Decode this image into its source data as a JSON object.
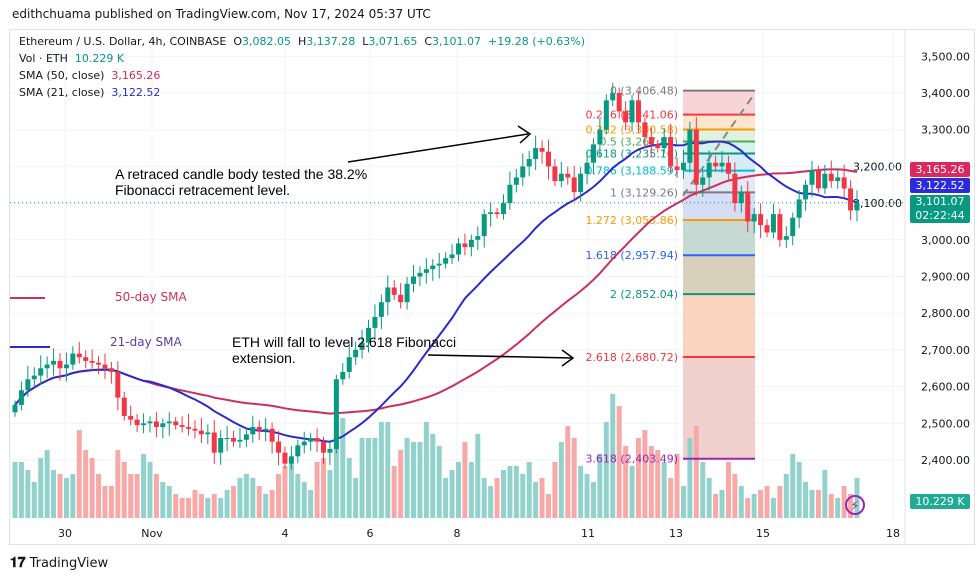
{
  "header": {
    "published": "edithchuama published on TradingView.com, Nov 17, 2024 05:37 UTC"
  },
  "legend": {
    "symbol": "Ethereum / U.S. Dollar, 4h, COINBASE",
    "o_label": "O",
    "o": "3,082.05",
    "h_label": "H",
    "h": "3,137.28",
    "l_label": "L",
    "l": "3,071.65",
    "c_label": "C",
    "c": "3,101.07",
    "change": "+19.28 (+0.63%)",
    "vol_label": "Vol · ETH",
    "vol": "10.229 K",
    "sma50_label": "SMA (50, close)",
    "sma50": "3,165.26",
    "sma21_label": "SMA (21, close)",
    "sma21": "3,122.52"
  },
  "annotations": {
    "note1": "A retraced candle body tested the 38.2% Fibonacci retracement level.",
    "note2": "ETH  will fall to level 2.618 Fibonacci extension.",
    "sma50_legend": "50-day SMA",
    "sma21_legend": "21-day SMA"
  },
  "price_tags": {
    "sma50": "3,165.26",
    "sma21": "3,122.52",
    "last": "3,101.07",
    "countdown": "02:22:44",
    "volume": "10.229 K"
  },
  "colors": {
    "up": "#089981",
    "down": "#f23645",
    "sma50": "#cc2f5c",
    "sma21": "#2b2bc9",
    "vol_up": "#92d2cc",
    "vol_down": "#f7a9a7"
  },
  "footer": {
    "brand": "TradingView"
  },
  "chart_data": {
    "type": "candlestick",
    "title": "Ethereum / U.S. Dollar, 4h, COINBASE",
    "yticks": [
      "3,500.00",
      "3,400.00",
      "3,300.00",
      "3,200.00",
      "3,100.00",
      "3,000.00",
      "2,900.00",
      "2,800.00",
      "2,700.00",
      "2,600.00",
      "2,500.00",
      "2,400.00"
    ],
    "ytick_values": [
      3500,
      3400,
      3300,
      3200,
      3100,
      3000,
      2900,
      2800,
      2700,
      2600,
      2500,
      2400
    ],
    "xticks": [
      "30",
      "Nov",
      "4",
      "6",
      "8",
      "11",
      "13",
      "15",
      "18"
    ],
    "ylim": [
      2300,
      3550
    ],
    "grid": true,
    "closes": [
      2550,
      2590,
      2620,
      2630,
      2650,
      2660,
      2670,
      2650,
      2660,
      2690,
      2680,
      2670,
      2665,
      2660,
      2650,
      2640,
      2570,
      2520,
      2510,
      2495,
      2500,
      2505,
      2490,
      2500,
      2505,
      2495,
      2490,
      2485,
      2480,
      2470,
      2475,
      2420,
      2460,
      2460,
      2450,
      2455,
      2470,
      2490,
      2480,
      2485,
      2450,
      2420,
      2390,
      2410,
      2440,
      2450,
      2460,
      2450,
      2420,
      2430,
      2620,
      2640,
      2680,
      2700,
      2720,
      2760,
      2790,
      2830,
      2870,
      2850,
      2830,
      2880,
      2900,
      2910,
      2920,
      2930,
      2935,
      2950,
      2960,
      2990,
      2980,
      3000,
      3010,
      3070,
      3075,
      3070,
      3100,
      3150,
      3170,
      3200,
      3220,
      3250,
      3240,
      3200,
      3160,
      3180,
      3170,
      3130,
      3180,
      3210,
      3260,
      3300,
      3380,
      3400,
      3350,
      3320,
      3380,
      3320,
      3280,
      3260,
      3250,
      3280,
      3200,
      3190,
      3210,
      3300,
      3150,
      3170,
      3210,
      3200,
      3210,
      3180,
      3100,
      3130,
      3050,
      3070,
      3040,
      3020,
      3070,
      3000,
      3010,
      3060,
      3110,
      3150,
      3190,
      3140,
      3180,
      3160,
      3170,
      3140,
      3080,
      3101
    ],
    "volumes_k": [
      14,
      14,
      12,
      9,
      15,
      17,
      12,
      11,
      10,
      11,
      22,
      17,
      15,
      11,
      8,
      8,
      17,
      14,
      11,
      11,
      16,
      14,
      11,
      9,
      8,
      6,
      5,
      5,
      7,
      6,
      5,
      6,
      5,
      7,
      8,
      10,
      11,
      10,
      8,
      6,
      7,
      11,
      13,
      15,
      11,
      9,
      7,
      14,
      15,
      12,
      23,
      25,
      15,
      10,
      20,
      20,
      20,
      24,
      24,
      13,
      17,
      20,
      19,
      19,
      24,
      21,
      18,
      10,
      12,
      14,
      19,
      14,
      21,
      10,
      8,
      10,
      12,
      13,
      13,
      11,
      14,
      9,
      10,
      6,
      14,
      19,
      23,
      20,
      13,
      11,
      9,
      16,
      24,
      31,
      28,
      18,
      13,
      20,
      22,
      18,
      17,
      14,
      10,
      16,
      8,
      20,
      23,
      14,
      10,
      6,
      7,
      14,
      11,
      8,
      5,
      6,
      7,
      8,
      5,
      8,
      11,
      16,
      14,
      9,
      7,
      7,
      12,
      6,
      5,
      8,
      6,
      10
    ],
    "sma_periods": [
      50,
      21
    ],
    "fibonacci": {
      "levels": [
        {
          "ratio": "0",
          "price": "3,406.48",
          "value": 3406.48,
          "color": "#787b86"
        },
        {
          "ratio": "0.236",
          "price": "3,341.06",
          "value": 3341.06,
          "color": "#f23645"
        },
        {
          "ratio": "0.382",
          "price": "3,300.58",
          "value": 3300.58,
          "color": "#ff9800"
        },
        {
          "ratio": "0.5",
          "price": "3,267.87",
          "value": 3267.87,
          "color": "#4caf50"
        },
        {
          "ratio": "0.618",
          "price": "3,235.16",
          "value": 3235.16,
          "color": "#089981"
        },
        {
          "ratio": "0.786",
          "price": "3,188.59",
          "value": 3188.59,
          "color": "#00bcd4"
        },
        {
          "ratio": "1",
          "price": "3,129.26",
          "value": 3129.26,
          "color": "#787b86"
        },
        {
          "ratio": "1.272",
          "price": "3,053.86",
          "value": 3053.86,
          "color": "#ff9800"
        },
        {
          "ratio": "1.618",
          "price": "2,957.94",
          "value": 2957.94,
          "color": "#2962ff"
        },
        {
          "ratio": "2",
          "price": "2,852.04",
          "value": 2852.04,
          "color": "#089981"
        },
        {
          "ratio": "2.618",
          "price": "2,680.72",
          "value": 2680.72,
          "color": "#f23645"
        },
        {
          "ratio": "3.618",
          "price": "2,403.49",
          "value": 2403.49,
          "color": "#9c27b0"
        }
      ]
    }
  }
}
